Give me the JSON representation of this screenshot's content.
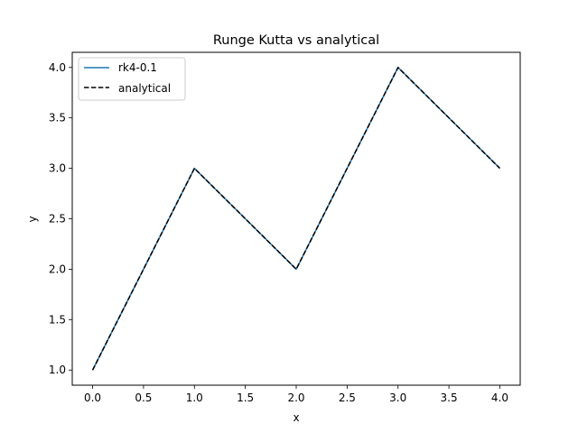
{
  "chart_data": {
    "type": "line",
    "title": "Runge Kutta vs analytical",
    "xlabel": "x",
    "ylabel": "y",
    "xlim": [
      -0.2,
      4.2
    ],
    "ylim": [
      0.85,
      4.15
    ],
    "xticks": [
      0.0,
      0.5,
      1.0,
      1.5,
      2.0,
      2.5,
      3.0,
      3.5,
      4.0
    ],
    "xtick_labels": [
      "0.0",
      "0.5",
      "1.0",
      "1.5",
      "2.0",
      "2.5",
      "3.0",
      "3.5",
      "4.0"
    ],
    "yticks": [
      1.0,
      1.5,
      2.0,
      2.5,
      3.0,
      3.5,
      4.0
    ],
    "ytick_labels": [
      "1.0",
      "1.5",
      "2.0",
      "2.5",
      "3.0",
      "3.5",
      "4.0"
    ],
    "grid": false,
    "legend_position": "top-left",
    "series": [
      {
        "name": "rk4-0.1",
        "style": "solid",
        "color": "#1f77b4",
        "x": [
          0,
          1,
          2,
          3,
          4
        ],
        "y": [
          1,
          3,
          2,
          4,
          3
        ]
      },
      {
        "name": "analytical",
        "style": "dashed",
        "color": "#000000",
        "x": [
          0,
          1,
          2,
          3,
          4
        ],
        "y": [
          1,
          3,
          2,
          4,
          3
        ]
      }
    ]
  }
}
